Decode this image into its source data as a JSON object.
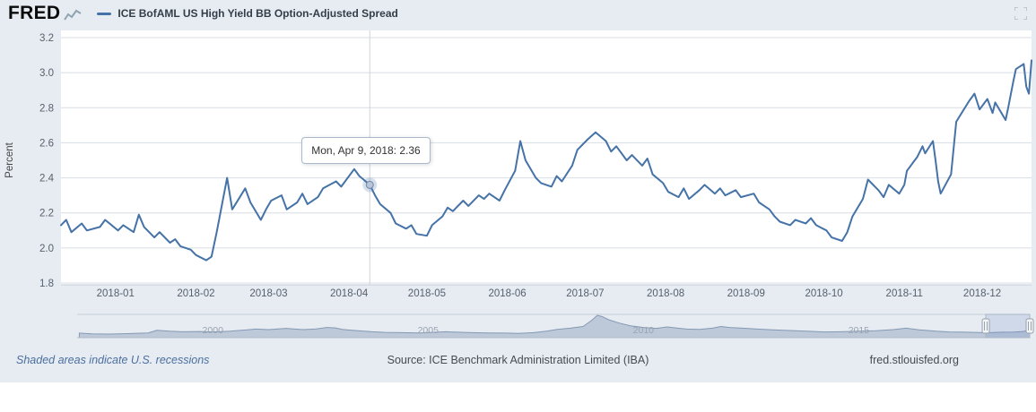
{
  "header": {
    "logo": "FRED",
    "legend_label": "ICE BofAML US High Yield BB Option-Adjusted Spread"
  },
  "chart": {
    "ylabel": "Percent",
    "tooltip_label": "Mon, Apr 9, 2018: 2.36"
  },
  "colors": {
    "accent": "#4572a7",
    "background": "#e7ecf3",
    "grid": "#d8dde4",
    "crosshair": "#cfd3d9"
  },
  "chart_data": [
    {
      "type": "line",
      "title": "ICE BofAML US High Yield BB Option-Adjusted Spread",
      "xlabel": "",
      "ylabel": "Percent",
      "ylim": [
        1.8,
        3.2
      ],
      "grid": "horizontal",
      "legend_position": "top",
      "line_color": "#4572a7",
      "y_ticks": [
        "3.2",
        "3.0",
        "2.8",
        "2.6",
        "2.4",
        "2.2",
        "2.0",
        "1.8"
      ],
      "x_ticks": [
        "2018-01",
        "2018-02",
        "2018-03",
        "2018-04",
        "2018-05",
        "2018-06",
        "2018-07",
        "2018-08",
        "2018-09",
        "2018-10",
        "2018-11",
        "2018-12"
      ],
      "highlight": {
        "date": "2018-04-09",
        "value": 2.36,
        "label": "Mon, Apr 9, 2018: 2.36"
      },
      "points": [
        [
          "2017-12-11",
          2.13
        ],
        [
          "2017-12-13",
          2.16
        ],
        [
          "2017-12-15",
          2.09
        ],
        [
          "2017-12-19",
          2.14
        ],
        [
          "2017-12-21",
          2.1
        ],
        [
          "2017-12-26",
          2.12
        ],
        [
          "2017-12-28",
          2.16
        ],
        [
          "2018-01-02",
          2.1
        ],
        [
          "2018-01-04",
          2.13
        ],
        [
          "2018-01-08",
          2.09
        ],
        [
          "2018-01-10",
          2.19
        ],
        [
          "2018-01-12",
          2.12
        ],
        [
          "2018-01-16",
          2.06
        ],
        [
          "2018-01-18",
          2.09
        ],
        [
          "2018-01-22",
          2.03
        ],
        [
          "2018-01-24",
          2.05
        ],
        [
          "2018-01-26",
          2.01
        ],
        [
          "2018-01-30",
          1.99
        ],
        [
          "2018-02-01",
          1.96
        ],
        [
          "2018-02-05",
          1.93
        ],
        [
          "2018-02-07",
          1.95
        ],
        [
          "2018-02-09",
          2.09
        ],
        [
          "2018-02-13",
          2.4
        ],
        [
          "2018-02-15",
          2.22
        ],
        [
          "2018-02-20",
          2.34
        ],
        [
          "2018-02-22",
          2.26
        ],
        [
          "2018-02-26",
          2.16
        ],
        [
          "2018-02-28",
          2.22
        ],
        [
          "2018-03-02",
          2.27
        ],
        [
          "2018-03-06",
          2.3
        ],
        [
          "2018-03-08",
          2.22
        ],
        [
          "2018-03-12",
          2.26
        ],
        [
          "2018-03-14",
          2.31
        ],
        [
          "2018-03-16",
          2.25
        ],
        [
          "2018-03-20",
          2.29
        ],
        [
          "2018-03-22",
          2.34
        ],
        [
          "2018-03-27",
          2.38
        ],
        [
          "2018-03-29",
          2.35
        ],
        [
          "2018-04-03",
          2.45
        ],
        [
          "2018-04-05",
          2.41
        ],
        [
          "2018-04-09",
          2.36
        ],
        [
          "2018-04-11",
          2.3
        ],
        [
          "2018-04-13",
          2.25
        ],
        [
          "2018-04-17",
          2.2
        ],
        [
          "2018-04-19",
          2.14
        ],
        [
          "2018-04-23",
          2.11
        ],
        [
          "2018-04-25",
          2.13
        ],
        [
          "2018-04-27",
          2.08
        ],
        [
          "2018-05-01",
          2.07
        ],
        [
          "2018-05-03",
          2.13
        ],
        [
          "2018-05-07",
          2.18
        ],
        [
          "2018-05-09",
          2.23
        ],
        [
          "2018-05-11",
          2.21
        ],
        [
          "2018-05-15",
          2.27
        ],
        [
          "2018-05-17",
          2.24
        ],
        [
          "2018-05-21",
          2.3
        ],
        [
          "2018-05-23",
          2.28
        ],
        [
          "2018-05-25",
          2.31
        ],
        [
          "2018-05-29",
          2.27
        ],
        [
          "2018-05-31",
          2.33
        ],
        [
          "2018-06-04",
          2.44
        ],
        [
          "2018-06-06",
          2.61
        ],
        [
          "2018-06-08",
          2.5
        ],
        [
          "2018-06-12",
          2.4
        ],
        [
          "2018-06-14",
          2.37
        ],
        [
          "2018-06-18",
          2.35
        ],
        [
          "2018-06-20",
          2.41
        ],
        [
          "2018-06-22",
          2.38
        ],
        [
          "2018-06-26",
          2.47
        ],
        [
          "2018-06-28",
          2.56
        ],
        [
          "2018-07-02",
          2.62
        ],
        [
          "2018-07-05",
          2.66
        ],
        [
          "2018-07-09",
          2.61
        ],
        [
          "2018-07-11",
          2.55
        ],
        [
          "2018-07-13",
          2.58
        ],
        [
          "2018-07-17",
          2.5
        ],
        [
          "2018-07-19",
          2.53
        ],
        [
          "2018-07-23",
          2.47
        ],
        [
          "2018-07-25",
          2.51
        ],
        [
          "2018-07-27",
          2.42
        ],
        [
          "2018-07-31",
          2.37
        ],
        [
          "2018-08-02",
          2.32
        ],
        [
          "2018-08-06",
          2.29
        ],
        [
          "2018-08-08",
          2.34
        ],
        [
          "2018-08-10",
          2.28
        ],
        [
          "2018-08-14",
          2.33
        ],
        [
          "2018-08-16",
          2.36
        ],
        [
          "2018-08-20",
          2.31
        ],
        [
          "2018-08-22",
          2.34
        ],
        [
          "2018-08-24",
          2.3
        ],
        [
          "2018-08-28",
          2.33
        ],
        [
          "2018-08-30",
          2.29
        ],
        [
          "2018-09-04",
          2.31
        ],
        [
          "2018-09-06",
          2.26
        ],
        [
          "2018-09-10",
          2.22
        ],
        [
          "2018-09-12",
          2.18
        ],
        [
          "2018-09-14",
          2.15
        ],
        [
          "2018-09-18",
          2.13
        ],
        [
          "2018-09-20",
          2.16
        ],
        [
          "2018-09-24",
          2.14
        ],
        [
          "2018-09-26",
          2.17
        ],
        [
          "2018-09-28",
          2.13
        ],
        [
          "2018-10-02",
          2.1
        ],
        [
          "2018-10-04",
          2.06
        ],
        [
          "2018-10-08",
          2.04
        ],
        [
          "2018-10-10",
          2.09
        ],
        [
          "2018-10-12",
          2.18
        ],
        [
          "2018-10-16",
          2.28
        ],
        [
          "2018-10-18",
          2.39
        ],
        [
          "2018-10-22",
          2.33
        ],
        [
          "2018-10-24",
          2.29
        ],
        [
          "2018-10-26",
          2.36
        ],
        [
          "2018-10-30",
          2.31
        ],
        [
          "2018-11-01",
          2.36
        ],
        [
          "2018-11-02",
          2.44
        ],
        [
          "2018-11-06",
          2.52
        ],
        [
          "2018-11-08",
          2.58
        ],
        [
          "2018-11-09",
          2.54
        ],
        [
          "2018-11-12",
          2.61
        ],
        [
          "2018-11-13",
          2.5
        ],
        [
          "2018-11-14",
          2.38
        ],
        [
          "2018-11-15",
          2.31
        ],
        [
          "2018-11-19",
          2.42
        ],
        [
          "2018-11-20",
          2.57
        ],
        [
          "2018-11-21",
          2.72
        ],
        [
          "2018-11-26",
          2.84
        ],
        [
          "2018-11-28",
          2.88
        ],
        [
          "2018-11-30",
          2.79
        ],
        [
          "2018-12-03",
          2.85
        ],
        [
          "2018-12-05",
          2.77
        ],
        [
          "2018-12-06",
          2.83
        ],
        [
          "2018-12-10",
          2.73
        ],
        [
          "2018-12-11",
          2.8
        ],
        [
          "2018-12-13",
          2.95
        ],
        [
          "2018-12-14",
          3.02
        ],
        [
          "2018-12-17",
          3.05
        ],
        [
          "2018-12-18",
          2.92
        ],
        [
          "2018-12-19",
          2.88
        ],
        [
          "2018-12-20",
          3.07
        ]
      ]
    },
    {
      "type": "area",
      "role": "navigator",
      "x_range": [
        1996.85,
        2018.97
      ],
      "year_labels": [
        "2000",
        "2005",
        "2010",
        "2015"
      ],
      "selection": [
        2017.95,
        2018.97
      ],
      "points": [
        [
          1996.9,
          1.9
        ],
        [
          1997.2,
          1.6
        ],
        [
          1997.6,
          1.5
        ],
        [
          1998.0,
          1.7
        ],
        [
          1998.5,
          2.0
        ],
        [
          1998.7,
          3.1
        ],
        [
          1999.0,
          2.7
        ],
        [
          1999.3,
          2.5
        ],
        [
          1999.7,
          2.6
        ],
        [
          2000.0,
          2.4
        ],
        [
          2000.4,
          2.7
        ],
        [
          2000.8,
          3.3
        ],
        [
          2001.0,
          3.6
        ],
        [
          2001.3,
          3.4
        ],
        [
          2001.7,
          3.9
        ],
        [
          2001.9,
          3.6
        ],
        [
          2002.1,
          3.4
        ],
        [
          2002.4,
          3.7
        ],
        [
          2002.65,
          4.3
        ],
        [
          2002.85,
          4.1
        ],
        [
          2003.0,
          3.5
        ],
        [
          2003.3,
          3.0
        ],
        [
          2003.7,
          2.5
        ],
        [
          2004.0,
          2.2
        ],
        [
          2004.4,
          2.1
        ],
        [
          2004.8,
          2.0
        ],
        [
          2005.1,
          2.2
        ],
        [
          2005.4,
          2.5
        ],
        [
          2005.7,
          2.3
        ],
        [
          2006.0,
          2.1
        ],
        [
          2006.4,
          2.0
        ],
        [
          2006.8,
          1.9
        ],
        [
          2007.1,
          1.8
        ],
        [
          2007.45,
          2.1
        ],
        [
          2007.75,
          2.7
        ],
        [
          2008.0,
          3.5
        ],
        [
          2008.3,
          4.0
        ],
        [
          2008.6,
          4.7
        ],
        [
          2008.8,
          7.3
        ],
        [
          2008.93,
          9.4
        ],
        [
          2009.05,
          8.8
        ],
        [
          2009.2,
          7.5
        ],
        [
          2009.45,
          6.1
        ],
        [
          2009.7,
          5.0
        ],
        [
          2010.0,
          4.3
        ],
        [
          2010.3,
          3.9
        ],
        [
          2010.55,
          4.5
        ],
        [
          2010.8,
          4.0
        ],
        [
          2011.0,
          3.6
        ],
        [
          2011.3,
          3.5
        ],
        [
          2011.6,
          4.0
        ],
        [
          2011.8,
          4.7
        ],
        [
          2012.0,
          4.3
        ],
        [
          2012.3,
          4.0
        ],
        [
          2012.6,
          3.7
        ],
        [
          2013.0,
          3.3
        ],
        [
          2013.4,
          3.0
        ],
        [
          2013.8,
          2.7
        ],
        [
          2014.2,
          2.4
        ],
        [
          2014.6,
          2.5
        ],
        [
          2015.0,
          2.7
        ],
        [
          2015.4,
          2.9
        ],
        [
          2015.8,
          3.4
        ],
        [
          2016.1,
          4.0
        ],
        [
          2016.4,
          3.3
        ],
        [
          2016.8,
          2.7
        ],
        [
          2017.1,
          2.4
        ],
        [
          2017.5,
          2.3
        ],
        [
          2017.9,
          2.1
        ],
        [
          2018.1,
          2.15
        ],
        [
          2018.35,
          2.3
        ],
        [
          2018.6,
          2.35
        ],
        [
          2018.8,
          2.6
        ],
        [
          2018.9,
          2.85
        ],
        [
          2018.97,
          3.05
        ]
      ]
    }
  ],
  "footer": {
    "recessions_note": "Shaded areas indicate U.S. recessions",
    "source": "Source: ICE Benchmark Administration Limited (IBA)",
    "site": "fred.stlouisfed.org"
  }
}
